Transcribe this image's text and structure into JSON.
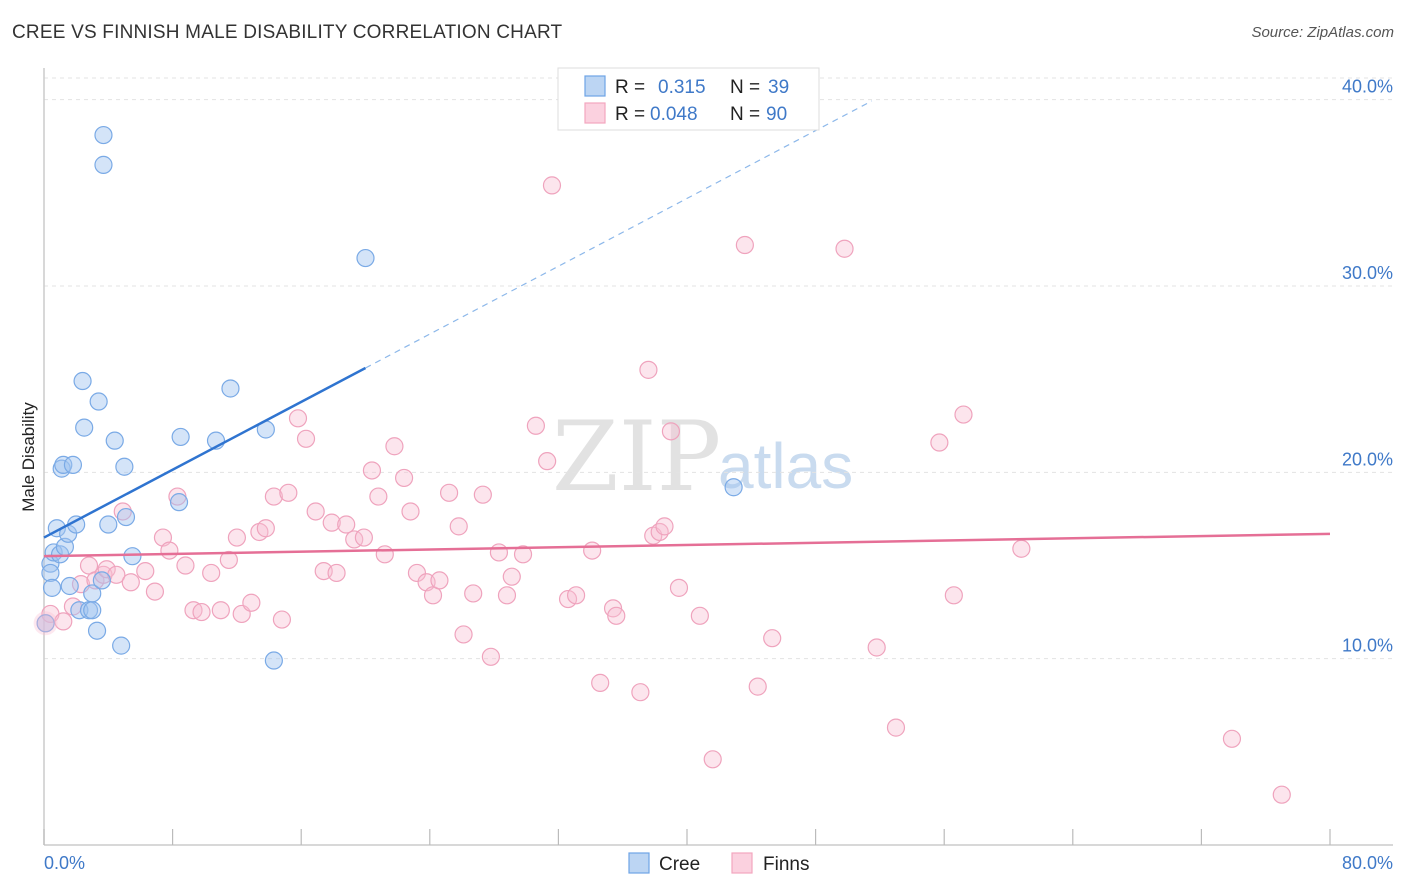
{
  "title": "CREE VS FINNISH MALE DISABILITY CORRELATION CHART",
  "source": "Source: ZipAtlas.com",
  "watermark": {
    "part1": "ZIP",
    "part2": "atlas"
  },
  "legend_top": [
    {
      "r_label": "R =",
      "r_value": "0.315",
      "n_label": "N =",
      "n_value": "39"
    },
    {
      "r_label": "R =",
      "r_value": "0.048",
      "n_label": "N =",
      "n_value": "90"
    }
  ],
  "legend_bottom": [
    "Cree",
    "Finns"
  ],
  "colors": {
    "cree": "#6ea4e6",
    "cree_line": "#2f74d0",
    "finns": "#f3a6bf",
    "finns_line": "#e56f96",
    "tick": "#3f79c8"
  },
  "chart_data": {
    "type": "scatter",
    "title": "CREE VS FINNISH MALE DISABILITY CORRELATION CHART",
    "xlabel": "",
    "ylabel": "Male Disability",
    "xlim": [
      0,
      80
    ],
    "ylim": [
      0,
      41.7
    ],
    "x_tick_labels": [
      "0.0%",
      "80.0%"
    ],
    "y_ticks": [
      10,
      20,
      30,
      40
    ],
    "y_tick_labels": [
      "10.0%",
      "20.0%",
      "30.0%",
      "40.0%"
    ],
    "grid": true,
    "legend": "top-center",
    "series": [
      {
        "name": "Cree",
        "r": 0.315,
        "n": 39,
        "trend": {
          "x0": 0,
          "y0": 16.5,
          "x1": 20,
          "y1": 25.6,
          "dashed_to_x": 51.5
        },
        "points": [
          [
            0.1,
            11.9
          ],
          [
            0.4,
            15.1
          ],
          [
            0.4,
            14.6
          ],
          [
            0.5,
            13.8
          ],
          [
            0.6,
            15.7
          ],
          [
            0.8,
            17.0
          ],
          [
            1.0,
            15.6
          ],
          [
            1.1,
            20.2
          ],
          [
            1.2,
            20.4
          ],
          [
            1.3,
            16.0
          ],
          [
            1.5,
            16.7
          ],
          [
            1.6,
            13.9
          ],
          [
            1.8,
            20.4
          ],
          [
            2.0,
            17.2
          ],
          [
            2.2,
            12.6
          ],
          [
            2.4,
            24.9
          ],
          [
            2.5,
            22.4
          ],
          [
            2.8,
            12.6
          ],
          [
            3.0,
            12.6
          ],
          [
            3.0,
            13.5
          ],
          [
            3.3,
            11.5
          ],
          [
            3.4,
            23.8
          ],
          [
            3.6,
            14.2
          ],
          [
            3.7,
            36.5
          ],
          [
            3.7,
            38.1
          ],
          [
            4.0,
            17.2
          ],
          [
            4.4,
            21.7
          ],
          [
            4.8,
            10.7
          ],
          [
            5.0,
            20.3
          ],
          [
            5.1,
            17.6
          ],
          [
            5.5,
            15.5
          ],
          [
            8.4,
            18.4
          ],
          [
            8.5,
            21.9
          ],
          [
            10.7,
            21.7
          ],
          [
            11.6,
            24.5
          ],
          [
            13.8,
            22.3
          ],
          [
            14.3,
            9.9
          ],
          [
            20.0,
            31.5
          ],
          [
            42.9,
            19.2
          ]
        ]
      },
      {
        "name": "Finns",
        "r": 0.048,
        "n": 90,
        "trend": {
          "x0": 0,
          "y0": 15.5,
          "x1": 80,
          "y1": 16.7
        },
        "points": [
          [
            0.1,
            11.9
          ],
          [
            0.4,
            12.4
          ],
          [
            1.2,
            12.0
          ],
          [
            1.8,
            12.8
          ],
          [
            2.3,
            14.0
          ],
          [
            2.8,
            15.0
          ],
          [
            3.2,
            14.2
          ],
          [
            3.7,
            14.5
          ],
          [
            3.9,
            14.8
          ],
          [
            4.5,
            14.5
          ],
          [
            4.9,
            17.9
          ],
          [
            5.4,
            14.1
          ],
          [
            6.3,
            14.7
          ],
          [
            6.9,
            13.6
          ],
          [
            7.4,
            16.5
          ],
          [
            7.8,
            15.8
          ],
          [
            8.3,
            18.7
          ],
          [
            8.8,
            15.0
          ],
          [
            9.3,
            12.6
          ],
          [
            9.8,
            12.5
          ],
          [
            10.4,
            14.6
          ],
          [
            11.0,
            12.6
          ],
          [
            11.5,
            15.3
          ],
          [
            12.0,
            16.5
          ],
          [
            12.3,
            12.4
          ],
          [
            12.9,
            13.0
          ],
          [
            13.4,
            16.8
          ],
          [
            13.8,
            17.0
          ],
          [
            14.3,
            18.7
          ],
          [
            14.8,
            12.1
          ],
          [
            15.2,
            18.9
          ],
          [
            15.8,
            22.9
          ],
          [
            16.3,
            21.8
          ],
          [
            16.9,
            17.9
          ],
          [
            17.4,
            14.7
          ],
          [
            17.9,
            17.3
          ],
          [
            18.2,
            14.6
          ],
          [
            18.8,
            17.2
          ],
          [
            19.3,
            16.4
          ],
          [
            19.9,
            16.5
          ],
          [
            20.4,
            20.1
          ],
          [
            20.8,
            18.7
          ],
          [
            21.2,
            15.6
          ],
          [
            21.8,
            21.4
          ],
          [
            22.4,
            19.7
          ],
          [
            22.8,
            17.9
          ],
          [
            23.2,
            14.6
          ],
          [
            23.8,
            14.1
          ],
          [
            24.2,
            13.4
          ],
          [
            24.6,
            14.2
          ],
          [
            25.2,
            18.9
          ],
          [
            25.8,
            17.1
          ],
          [
            26.1,
            11.3
          ],
          [
            26.7,
            13.5
          ],
          [
            27.3,
            18.8
          ],
          [
            27.8,
            10.1
          ],
          [
            28.3,
            15.7
          ],
          [
            28.8,
            13.4
          ],
          [
            29.1,
            14.4
          ],
          [
            29.8,
            15.6
          ],
          [
            30.6,
            22.5
          ],
          [
            31.3,
            20.6
          ],
          [
            31.6,
            35.4
          ],
          [
            32.6,
            13.2
          ],
          [
            33.1,
            13.4
          ],
          [
            34.1,
            15.8
          ],
          [
            34.6,
            8.7
          ],
          [
            35.4,
            12.7
          ],
          [
            35.6,
            12.3
          ],
          [
            37.1,
            8.2
          ],
          [
            37.6,
            25.5
          ],
          [
            37.9,
            16.6
          ],
          [
            38.3,
            16.8
          ],
          [
            38.6,
            17.1
          ],
          [
            39.0,
            22.2
          ],
          [
            39.5,
            13.8
          ],
          [
            40.8,
            12.3
          ],
          [
            41.6,
            4.6
          ],
          [
            43.6,
            32.2
          ],
          [
            44.4,
            8.5
          ],
          [
            45.3,
            11.1
          ],
          [
            49.8,
            32.0
          ],
          [
            51.8,
            10.6
          ],
          [
            53.0,
            6.3
          ],
          [
            55.7,
            21.6
          ],
          [
            56.6,
            13.4
          ],
          [
            57.2,
            23.1
          ],
          [
            60.8,
            15.9
          ],
          [
            73.9,
            5.7
          ],
          [
            77.0,
            2.7
          ]
        ]
      }
    ]
  }
}
